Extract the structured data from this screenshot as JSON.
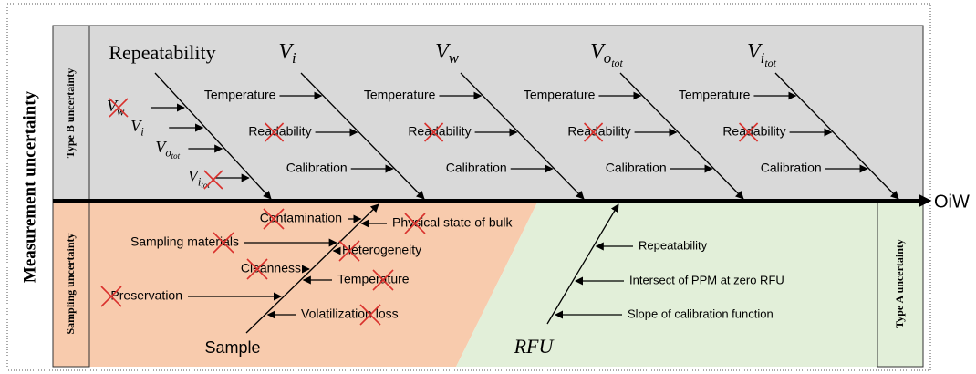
{
  "side_label": "Measurement uncertainty",
  "type_b": {
    "label": "Type B uncertainty",
    "repeatability": {
      "label": "Repeatability",
      "causes": [
        {
          "base": "V",
          "sub": "w"
        },
        {
          "base": "V",
          "sub": "i"
        },
        {
          "base": "V",
          "sub": "o",
          "subsub": "tot"
        },
        {
          "base": "V",
          "sub": "i",
          "subsub": "tot"
        }
      ]
    },
    "bones": [
      {
        "label": {
          "base": "V",
          "sub": "i"
        },
        "causes": [
          "Temperature",
          "Readability",
          "Calibration"
        ]
      },
      {
        "label": {
          "base": "V",
          "sub": "w"
        },
        "causes": [
          "Temperature",
          "Readability",
          "Calibration"
        ]
      },
      {
        "label": {
          "base": "V",
          "sub": "o",
          "subsub": "tot"
        },
        "causes": [
          "Temperature",
          "Readability",
          "Calibration"
        ]
      },
      {
        "label": {
          "base": "V",
          "sub": "i",
          "subsub": "tot"
        },
        "causes": [
          "Temperature",
          "Readability",
          "Calibration"
        ]
      }
    ]
  },
  "sampling": {
    "label": "Sampling uncertainty",
    "head": "Sample",
    "causes": [
      "Contamination",
      "Physical state of bulk",
      "Sampling materials",
      "Heterogeneity",
      "Cleanness",
      "Temperature",
      "Preservation",
      "Volatilization loss"
    ]
  },
  "type_a": {
    "label": "Type A uncertainty",
    "head": "RFU",
    "causes": [
      "Repeatability",
      "Intersect of PPM at zero RFU",
      "Slope of calibration function"
    ]
  },
  "output": "OiW"
}
